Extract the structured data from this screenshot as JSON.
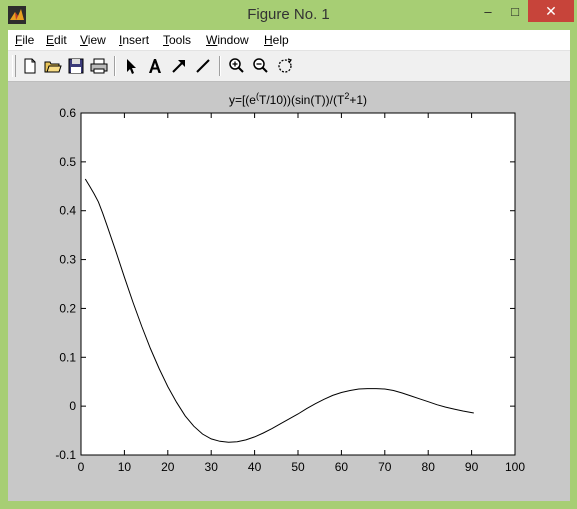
{
  "window": {
    "title": "Figure No. 1",
    "icon": "matlab-icon",
    "controls": {
      "minimize": "–",
      "maximize": "□",
      "close": "✕"
    }
  },
  "menu": [
    {
      "key": "file",
      "first": "F",
      "rest": "ile"
    },
    {
      "key": "edit",
      "first": "E",
      "rest": "dit"
    },
    {
      "key": "view",
      "first": "V",
      "rest": "iew"
    },
    {
      "key": "insert",
      "first": "I",
      "rest": "nsert"
    },
    {
      "key": "tools",
      "first": "T",
      "rest": "ools"
    },
    {
      "key": "window",
      "first": "W",
      "rest": "indow"
    },
    {
      "key": "help",
      "first": "H",
      "rest": "elp"
    }
  ],
  "toolbar": {
    "buttons": [
      "new-file-icon",
      "open-folder-icon",
      "save-icon",
      "print-icon",
      "select-arrow-icon",
      "insert-text-icon",
      "insert-arrow-icon",
      "insert-line-icon",
      "zoom-in-icon",
      "zoom-out-icon",
      "rotate-icon"
    ]
  },
  "colors": {
    "frame": "#a7ce74",
    "close": "#c7443a",
    "figure_bg": "#c8c8c8",
    "axes_bg": "#ffffff",
    "line": "#000000"
  },
  "chart_data": {
    "type": "line",
    "title_parts": [
      "y=[(e",
      "(",
      "T/10))(sin(T))/(T",
      "2",
      "+1)"
    ],
    "xlabel": "",
    "ylabel": "",
    "xlim": [
      0,
      100
    ],
    "ylim": [
      -0.1,
      0.6
    ],
    "xticks": [
      0,
      10,
      20,
      30,
      40,
      50,
      60,
      70,
      80,
      90,
      100
    ],
    "yticks": [
      -0.1,
      0,
      0.1,
      0.2,
      0.3,
      0.4,
      0.5,
      0.6
    ],
    "xtick_labels": [
      "0",
      "10",
      "20",
      "30",
      "40",
      "50",
      "60",
      "70",
      "80",
      "90",
      "100"
    ],
    "ytick_labels": [
      "-0.1",
      "0",
      "0.1",
      "0.2",
      "0.3",
      "0.4",
      "0.5",
      "0.6"
    ],
    "grid": false,
    "series": [
      {
        "x": [
          1,
          2,
          3,
          4,
          5,
          6,
          8,
          10,
          12,
          14,
          16,
          18,
          20,
          22,
          24,
          26,
          28,
          30,
          32,
          34,
          36,
          38,
          40,
          42,
          44,
          46,
          48,
          50,
          52,
          54,
          56,
          58,
          60,
          62,
          64,
          66,
          68,
          70,
          72,
          74,
          76,
          78,
          80,
          82,
          84,
          86,
          88,
          90.5
        ],
        "y": [
          0.465,
          0.45,
          0.435,
          0.418,
          0.395,
          0.37,
          0.318,
          0.264,
          0.212,
          0.163,
          0.118,
          0.077,
          0.04,
          0.008,
          -0.02,
          -0.041,
          -0.057,
          -0.067,
          -0.072,
          -0.074,
          -0.073,
          -0.069,
          -0.063,
          -0.055,
          -0.046,
          -0.036,
          -0.026,
          -0.016,
          -0.005,
          0.005,
          0.014,
          0.022,
          0.028,
          0.032,
          0.035,
          0.036,
          0.036,
          0.035,
          0.032,
          0.027,
          0.021,
          0.015,
          0.009,
          0.003,
          -0.002,
          -0.006,
          -0.01,
          -0.014
        ]
      }
    ]
  }
}
